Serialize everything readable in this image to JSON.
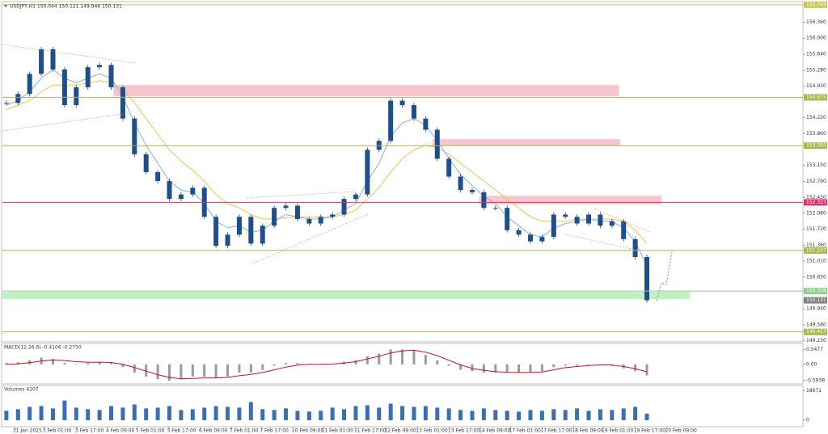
{
  "chart_data": {
    "type": "candlestick",
    "header": "USDJPY,H1  150.044 150.121 149.946 150.131",
    "candle_color": "#1f4e8c",
    "close": [
      154.55,
      154.75,
      155.2,
      155.75,
      155.3,
      154.5,
      154.9,
      155.35,
      155.4,
      154.9,
      154.2,
      153.4,
      153.0,
      152.8,
      152.4,
      152.5,
      152.65,
      152.0,
      151.35,
      151.6,
      152.0,
      151.4,
      151.8,
      152.2,
      152.25,
      151.95,
      151.85,
      152.0,
      152.05,
      152.4,
      152.5,
      153.5,
      153.7,
      154.6,
      154.5,
      154.2,
      153.95,
      153.3,
      152.9,
      152.6,
      152.55,
      152.2,
      152.2,
      151.7,
      151.6,
      151.45,
      151.55,
      152.05,
      152.0,
      151.85,
      152.05,
      151.8,
      151.9,
      151.5,
      151.1,
      150.131
    ],
    "ma_fast": {
      "color": "#7fb2e0",
      "values": [
        154.5,
        154.6,
        154.8,
        155.1,
        155.3,
        155.1,
        155.0,
        155.1,
        155.2,
        155.1,
        154.7,
        154.1,
        153.6,
        153.2,
        152.8,
        152.6,
        152.55,
        152.3,
        151.9,
        151.75,
        151.8,
        151.65,
        151.7,
        151.9,
        152.05,
        152.0,
        151.95,
        151.95,
        152.0,
        152.15,
        152.3,
        152.8,
        153.2,
        153.8,
        154.1,
        154.2,
        154.05,
        153.7,
        153.3,
        152.95,
        152.7,
        152.45,
        152.3,
        152.0,
        151.8,
        151.6,
        151.55,
        151.75,
        151.85,
        151.9,
        151.95,
        151.9,
        151.9,
        151.75,
        151.45,
        150.9
      ]
    },
    "ma_slow": {
      "color": "#f5c04a",
      "values": [
        154.4,
        154.5,
        154.6,
        154.8,
        154.95,
        154.95,
        154.95,
        155.0,
        155.05,
        155.0,
        154.85,
        154.55,
        154.2,
        153.85,
        153.5,
        153.25,
        153.05,
        152.8,
        152.5,
        152.3,
        152.2,
        152.05,
        151.95,
        151.95,
        151.98,
        152.0,
        152.0,
        152.0,
        152.0,
        152.05,
        152.15,
        152.4,
        152.65,
        153.0,
        153.3,
        153.5,
        153.6,
        153.55,
        153.4,
        153.2,
        153.0,
        152.8,
        152.6,
        152.4,
        152.2,
        152.0,
        151.9,
        151.9,
        151.9,
        151.95,
        151.95,
        151.95,
        151.95,
        151.9,
        151.7,
        151.4
      ]
    },
    "xlim": [
      -0.2,
      68.4
    ],
    "xticks": [
      {
        "value": 0.7,
        "label": "31 Jan 2025"
      },
      {
        "value": 3.26,
        "label": "3 Feb 01:00"
      },
      {
        "value": 6.04,
        "label": "3 Feb 17:00"
      },
      {
        "value": 8.68,
        "label": "4 Feb 09:00"
      },
      {
        "value": 11.25,
        "label": "5 Feb 01:00"
      },
      {
        "value": 13.96,
        "label": "5 Feb 17:00"
      },
      {
        "value": 16.67,
        "label": "6 Feb 09:00"
      },
      {
        "value": 19.3,
        "label": "7 Feb 01:00"
      },
      {
        "value": 21.9,
        "label": "7 Feb 17:00"
      },
      {
        "value": 24.65,
        "label": "10 Feb 09:00"
      },
      {
        "value": 27.2,
        "label": "11 Feb 01:00"
      },
      {
        "value": 30.0,
        "label": "11 Feb 17:00"
      },
      {
        "value": 32.6,
        "label": "12 Feb 09:00"
      },
      {
        "value": 35.3,
        "label": "13 Feb 01:00"
      },
      {
        "value": 38.05,
        "label": "13 Feb 17:00"
      },
      {
        "value": 40.7,
        "label": "14 Feb 09:00"
      },
      {
        "value": 43.3,
        "label": "17 Feb 01:00"
      },
      {
        "value": 46.0,
        "label": "17 Feb 17:00"
      },
      {
        "value": 48.7,
        "label": "18 Feb 09:00"
      },
      {
        "value": 51.25,
        "label": "19 Feb 01:00"
      },
      {
        "value": 54.0,
        "label": "19 Feb 17:00"
      },
      {
        "value": 56.7,
        "label": "20 Feb 09:00"
      }
    ],
    "ylim": [
      149.2,
      156.8
    ],
    "yticks": [
      {
        "value": 156.36,
        "label": "156.360"
      },
      {
        "value": 156.0,
        "label": "156.000"
      },
      {
        "value": 155.64,
        "label": "155.640"
      },
      {
        "value": 155.28,
        "label": "155.280"
      },
      {
        "value": 154.93,
        "label": "154.930"
      },
      {
        "value": 154.22,
        "label": "154.220"
      },
      {
        "value": 153.86,
        "label": "153.860"
      },
      {
        "value": 153.15,
        "label": "153.150"
      },
      {
        "value": 152.79,
        "label": "152.790"
      },
      {
        "value": 152.43,
        "label": "152.430"
      },
      {
        "value": 152.08,
        "label": "152.080"
      },
      {
        "value": 151.72,
        "label": "151.720"
      },
      {
        "value": 151.36,
        "label": "151.360"
      },
      {
        "value": 151.01,
        "label": "151.010"
      },
      {
        "value": 150.65,
        "label": "150.650"
      },
      {
        "value": 149.94,
        "label": "149.940"
      },
      {
        "value": 149.58,
        "label": "149.580"
      },
      {
        "value": 149.23,
        "label": "149.230"
      }
    ],
    "levels": [
      {
        "value": 156.749,
        "color": "#c8c850"
      },
      {
        "value": 154.675,
        "color": "#a8b84a"
      },
      {
        "value": 153.593,
        "color": "#a8b84a"
      },
      {
        "value": 152.323,
        "color": "#e0306a"
      },
      {
        "value": 151.247,
        "color": "#a8b84a"
      },
      {
        "value": 150.338,
        "color": "#8fd08a"
      },
      {
        "value": 149.423,
        "color": "#a8b84a"
      }
    ],
    "zones": [
      {
        "from": 154.95,
        "to": 154.7,
        "start": 9.2,
        "end": 52.6,
        "color": "#f7c6cf"
      },
      {
        "from": 153.74,
        "to": 153.59,
        "start": 36.6,
        "end": 52.7,
        "color": "#f7c6cf"
      },
      {
        "from": 152.47,
        "to": 152.28,
        "start": 40.6,
        "end": 56.25,
        "color": "#f7c6cf"
      },
      {
        "from": 150.32,
        "to": 150.16,
        "start": -0.35,
        "end": 58.7,
        "color": "#bff0bf"
      }
    ],
    "last_price_color": "#808080",
    "macd": {
      "title": "MACD(12,26,9) -0.4106 -0.2750",
      "ylim": [
        -0.69,
        0.74
      ],
      "yticks": [
        0.5477,
        {
          "value": 0,
          "label": "0.00"
        },
        -0.5938
      ],
      "hist_color": "#9a9a9a",
      "signal_color": "#d01010",
      "hist": [
        0.05,
        0.08,
        0.15,
        0.25,
        0.2,
        0.05,
        0.02,
        0.05,
        0.1,
        0.05,
        -0.1,
        -0.3,
        -0.45,
        -0.55,
        -0.6,
        -0.55,
        -0.45,
        -0.45,
        -0.5,
        -0.45,
        -0.3,
        -0.3,
        -0.2,
        -0.05,
        0.05,
        0.05,
        0.0,
        0.0,
        0.02,
        0.1,
        0.15,
        0.3,
        0.4,
        0.55,
        0.55,
        0.5,
        0.35,
        0.15,
        -0.05,
        -0.2,
        -0.25,
        -0.3,
        -0.3,
        -0.3,
        -0.3,
        -0.3,
        -0.25,
        -0.1,
        -0.05,
        -0.05,
        0.0,
        0.0,
        -0.05,
        -0.15,
        -0.25,
        -0.41
      ],
      "signal": [
        0.0,
        0.02,
        0.06,
        0.12,
        0.16,
        0.14,
        0.1,
        0.08,
        0.08,
        0.07,
        0.0,
        -0.12,
        -0.25,
        -0.38,
        -0.48,
        -0.53,
        -0.52,
        -0.5,
        -0.5,
        -0.48,
        -0.42,
        -0.37,
        -0.3,
        -0.2,
        -0.1,
        -0.03,
        0.0,
        0.0,
        0.01,
        0.05,
        0.1,
        0.2,
        0.3,
        0.42,
        0.5,
        0.52,
        0.45,
        0.32,
        0.15,
        -0.02,
        -0.15,
        -0.22,
        -0.27,
        -0.29,
        -0.3,
        -0.3,
        -0.28,
        -0.2,
        -0.12,
        -0.08,
        -0.04,
        -0.02,
        -0.03,
        -0.08,
        -0.16,
        -0.275
      ]
    },
    "volumes": {
      "title": "Volumes 4207",
      "ylim": [
        0,
        21500
      ],
      "yticks": [
        18671,
        0
      ],
      "color": "#3a6fb5",
      "values": [
        6000,
        7000,
        8500,
        9000,
        7500,
        12500,
        8000,
        7000,
        6500,
        9000,
        8000,
        10000,
        7500,
        8000,
        9000,
        6500,
        7000,
        8000,
        9000,
        8500,
        8000,
        11500,
        7000,
        6500,
        7500,
        6000,
        5500,
        6000,
        8000,
        7000,
        9000,
        9500,
        8000,
        10500,
        9000,
        8500,
        9000,
        8000,
        7500,
        6500,
        6000,
        7500,
        6500,
        6000,
        5500,
        6500,
        6000,
        7000,
        6500,
        7500,
        6000,
        7000,
        6500,
        7500,
        8500,
        4207
      ]
    }
  }
}
